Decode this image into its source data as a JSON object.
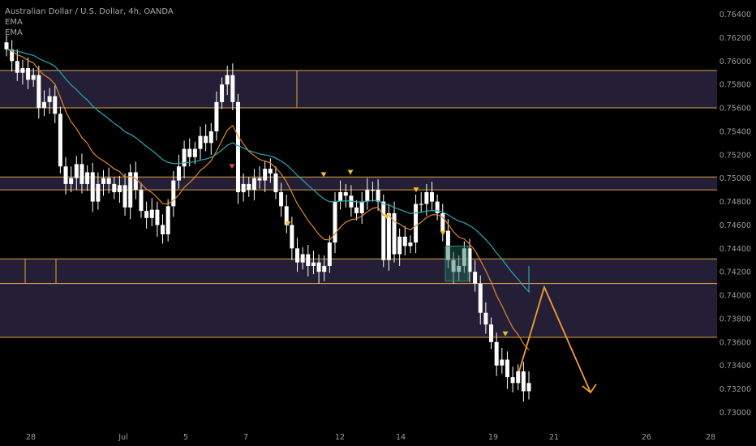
{
  "header": {
    "instrument": "Australian Dollar / U.S. Dollar, 4h, OANDA",
    "indicators": [
      "EMA",
      "EMA"
    ]
  },
  "colors": {
    "background": "#000000",
    "zone_fill": "#2a2440",
    "zone_border": "#e0a040",
    "candle_up": "#ffffff",
    "candle_down": "#ffffff",
    "ema_fast": "#e0872a",
    "ema_slow": "#2aa7b5",
    "marker": "#f0c020",
    "marker_red": "#d94848",
    "projection": "#f0a030"
  },
  "chart_data": {
    "type": "candlestick",
    "ylim": [
      0.7292,
      0.7648
    ],
    "y_ticks": [
      "0.76400",
      "0.76200",
      "0.76000",
      "0.75800",
      "0.75600",
      "0.75400",
      "0.75200",
      "0.75000",
      "0.74800",
      "0.74600",
      "0.74400",
      "0.74200",
      "0.74000",
      "0.73800",
      "0.73600",
      "0.73400",
      "0.73200",
      "0.73000"
    ],
    "x_ticks": [
      "28",
      "Jul",
      "5",
      "7",
      "12",
      "14",
      "19",
      "21",
      "26",
      "28"
    ],
    "candles_close": [
      0.761,
      0.76,
      0.759,
      0.7594,
      0.7584,
      0.7588,
      0.756,
      0.7565,
      0.757,
      0.7555,
      0.751,
      0.7495,
      0.75,
      0.7512,
      0.7495,
      0.7505,
      0.748,
      0.7495,
      0.75,
      0.7495,
      0.7488,
      0.7494,
      0.7475,
      0.7505,
      0.749,
      0.7472,
      0.7466,
      0.7473,
      0.746,
      0.7452,
      0.7476,
      0.7498,
      0.751,
      0.7525,
      0.7518,
      0.7525,
      0.7536,
      0.753,
      0.754,
      0.7565,
      0.758,
      0.7588,
      0.7565,
      0.7488,
      0.7495,
      0.749,
      0.75,
      0.7498,
      0.7508,
      0.7504,
      0.7488,
      0.7476,
      0.746,
      0.744,
      0.7428,
      0.7435,
      0.7425,
      0.7428,
      0.742,
      0.7425,
      0.7445,
      0.748,
      0.7488,
      0.7485,
      0.7475,
      0.747,
      0.748,
      0.749,
      0.749,
      0.748,
      0.743,
      0.747,
      0.7435,
      0.745,
      0.7442,
      0.7445,
      0.7478,
      0.7478,
      0.7488,
      0.748,
      0.747,
      0.7455,
      0.743,
      0.742,
      0.7425,
      0.744,
      0.742,
      0.741,
      0.7385,
      0.7375,
      0.736,
      0.734,
      0.7345,
      0.733,
      0.7325,
      0.7335,
      0.7318,
      0.7325
    ],
    "support_resistance_zones": [
      [
        0.756,
        0.7592
      ],
      [
        0.749,
        0.7501
      ],
      [
        0.741,
        0.7431
      ],
      [
        0.7364,
        0.741
      ]
    ],
    "projection_path": [
      [
        0.7335
      ],
      [
        0.7407
      ],
      [
        0.7317
      ]
    ]
  }
}
